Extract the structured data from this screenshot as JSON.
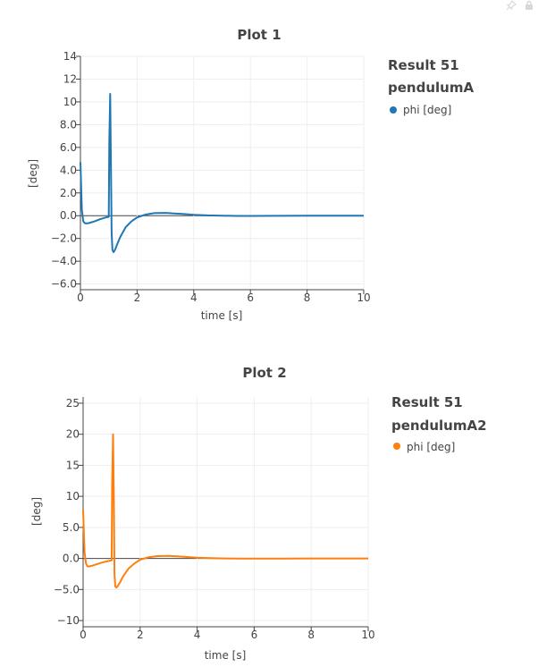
{
  "toolbar": {
    "icons": [
      "pin-icon",
      "lock-icon"
    ]
  },
  "plots": [
    {
      "title": "Plot 1",
      "legend": {
        "title_line1": "Result 51",
        "title_line2": "pendulumA",
        "item": "phi [deg]"
      },
      "color": "#1f77b4"
    },
    {
      "title": "Plot 2",
      "legend": {
        "title_line1": "Result 51",
        "title_line2": "pendulumA2",
        "item": "phi [deg]"
      },
      "color": "#ff7f0e"
    }
  ],
  "chart_data": [
    {
      "type": "line",
      "title": "Plot 1",
      "xlabel": "time [s]",
      "ylabel": "[deg]",
      "xlim": [
        0,
        10
      ],
      "ylim": [
        -6.5,
        14
      ],
      "xticks": [
        0,
        2,
        4,
        6,
        8,
        10
      ],
      "xtick_labels": [
        "0",
        "2",
        "4",
        "6",
        "8",
        "10"
      ],
      "yticks": [
        -6,
        -4,
        -2,
        0,
        2,
        4,
        6,
        8,
        10,
        12,
        14
      ],
      "ytick_labels": [
        "−6.0",
        "−4.0",
        "−2.0",
        "0.0",
        "2.0",
        "4.0",
        "6.0",
        "8.0",
        "10",
        "12",
        "14"
      ],
      "grid": true,
      "legend_position": "right",
      "series": [
        {
          "name": "phi [deg]",
          "color": "#1f77b4",
          "x": [
            0,
            0.05,
            0.1,
            0.15,
            0.2,
            0.3,
            0.5,
            0.7,
            0.9,
            1.0,
            1.02,
            1.05,
            1.08,
            1.1,
            1.13,
            1.17,
            1.22,
            1.3,
            1.4,
            1.6,
            1.8,
            2.0,
            2.3,
            2.6,
            3.0,
            3.3,
            3.6,
            4.0,
            4.5,
            5.0,
            5.5,
            6.0,
            7.0,
            8.0,
            9.0,
            10.0
          ],
          "y": [
            4.7,
            0.5,
            -0.5,
            -0.65,
            -0.68,
            -0.65,
            -0.5,
            -0.3,
            -0.15,
            -0.1,
            6.5,
            10.7,
            4.0,
            -1.5,
            -3.0,
            -3.2,
            -3.0,
            -2.5,
            -1.9,
            -1.0,
            -0.5,
            -0.15,
            0.1,
            0.22,
            0.25,
            0.2,
            0.15,
            0.08,
            0.03,
            0.0,
            -0.02,
            -0.02,
            -0.01,
            0.0,
            0.0,
            0.0
          ]
        }
      ]
    },
    {
      "type": "line",
      "title": "Plot 2",
      "xlabel": "time [s]",
      "ylabel": "[deg]",
      "xlim": [
        0,
        10
      ],
      "ylim": [
        -11,
        26
      ],
      "xticks": [
        0,
        2,
        4,
        6,
        8,
        10
      ],
      "xtick_labels": [
        "0",
        "2",
        "4",
        "6",
        "8",
        "10"
      ],
      "yticks": [
        -10,
        -5,
        0,
        5,
        10,
        15,
        20,
        25
      ],
      "ytick_labels": [
        "−10",
        "−5.0",
        "0.0",
        "5.0",
        "10",
        "15",
        "20",
        "25"
      ],
      "grid": true,
      "legend_position": "right",
      "series": [
        {
          "name": "phi [deg]",
          "color": "#ff7f0e",
          "x": [
            0,
            0.05,
            0.1,
            0.15,
            0.2,
            0.3,
            0.5,
            0.7,
            0.9,
            1.0,
            1.02,
            1.05,
            1.08,
            1.1,
            1.13,
            1.17,
            1.22,
            1.3,
            1.4,
            1.6,
            1.8,
            2.0,
            2.3,
            2.6,
            3.0,
            3.3,
            3.6,
            4.0,
            4.5,
            5.0,
            5.5,
            6.0,
            7.0,
            8.0,
            9.0,
            10.0
          ],
          "y": [
            7.8,
            1.0,
            -0.8,
            -1.25,
            -1.3,
            -1.2,
            -0.9,
            -0.6,
            -0.4,
            -0.3,
            12.0,
            20.0,
            8.0,
            -2.5,
            -4.5,
            -4.7,
            -4.4,
            -3.8,
            -2.9,
            -1.6,
            -0.8,
            -0.2,
            0.2,
            0.38,
            0.42,
            0.33,
            0.24,
            0.13,
            0.05,
            0.0,
            -0.03,
            -0.03,
            -0.02,
            0.0,
            0.0,
            0.0
          ]
        }
      ]
    }
  ]
}
